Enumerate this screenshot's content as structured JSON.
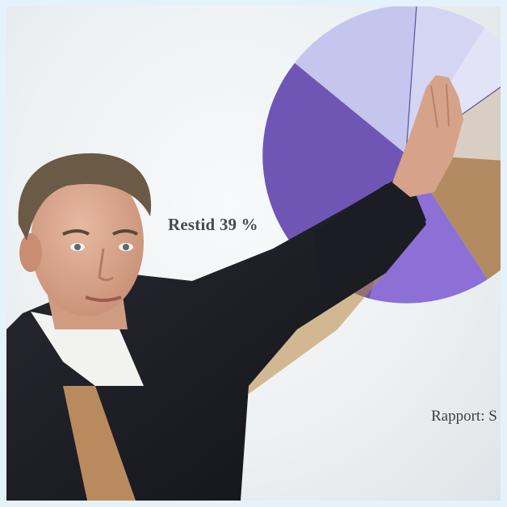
{
  "photo": {
    "subject": "man-pointing-at-projected-pie-chart",
    "colors": {
      "background": "#e4f2fb",
      "screen": "#f1f3f5",
      "pie_light": "#c4c6ee",
      "pie_purple": "#7056b4",
      "pie_violet": "#8c70d6",
      "pie_tan": "#b38b63",
      "pie_beige": "#d8cec4",
      "jacket": "#1b1c22",
      "shirt": "#f2f2f0",
      "skin": "#d9a98f",
      "hair": "#6b5a46"
    }
  },
  "screen_text": {
    "restid": "Restid 39 %",
    "rapport": "Rapport: S"
  }
}
